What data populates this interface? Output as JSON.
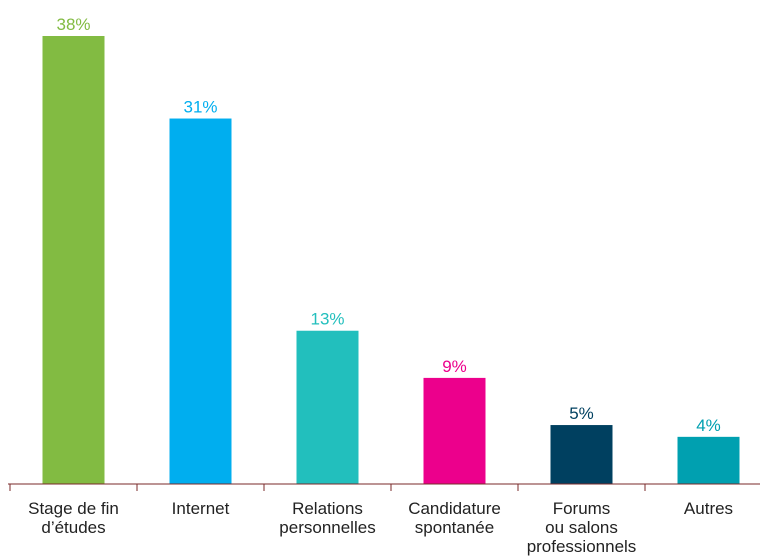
{
  "chart_data": {
    "type": "bar",
    "title": "",
    "xlabel": "",
    "ylabel": "",
    "ylim": [
      0,
      38
    ],
    "grid": false,
    "categories": [
      [
        "Stage de fin",
        "d’études"
      ],
      [
        "Internet"
      ],
      [
        "Relations",
        "personnelles"
      ],
      [
        "Candidature",
        "spontanée"
      ],
      [
        "Forums",
        "ou salons",
        "professionnels"
      ],
      [
        "Autres"
      ]
    ],
    "values": [
      38,
      31,
      13,
      9,
      5,
      4
    ],
    "value_labels": [
      "38%",
      "31%",
      "13%",
      "9%",
      "5%",
      "4%"
    ],
    "colors": [
      "#82bb42",
      "#00aeef",
      "#22bfbd",
      "#ec008c",
      "#004060",
      "#00a0b0"
    ],
    "label_colors": [
      "#82bb42",
      "#00aeef",
      "#22bfbd",
      "#ec008c",
      "#004060",
      "#00a0b0"
    ],
    "axis_color": "#7a2a2a"
  }
}
